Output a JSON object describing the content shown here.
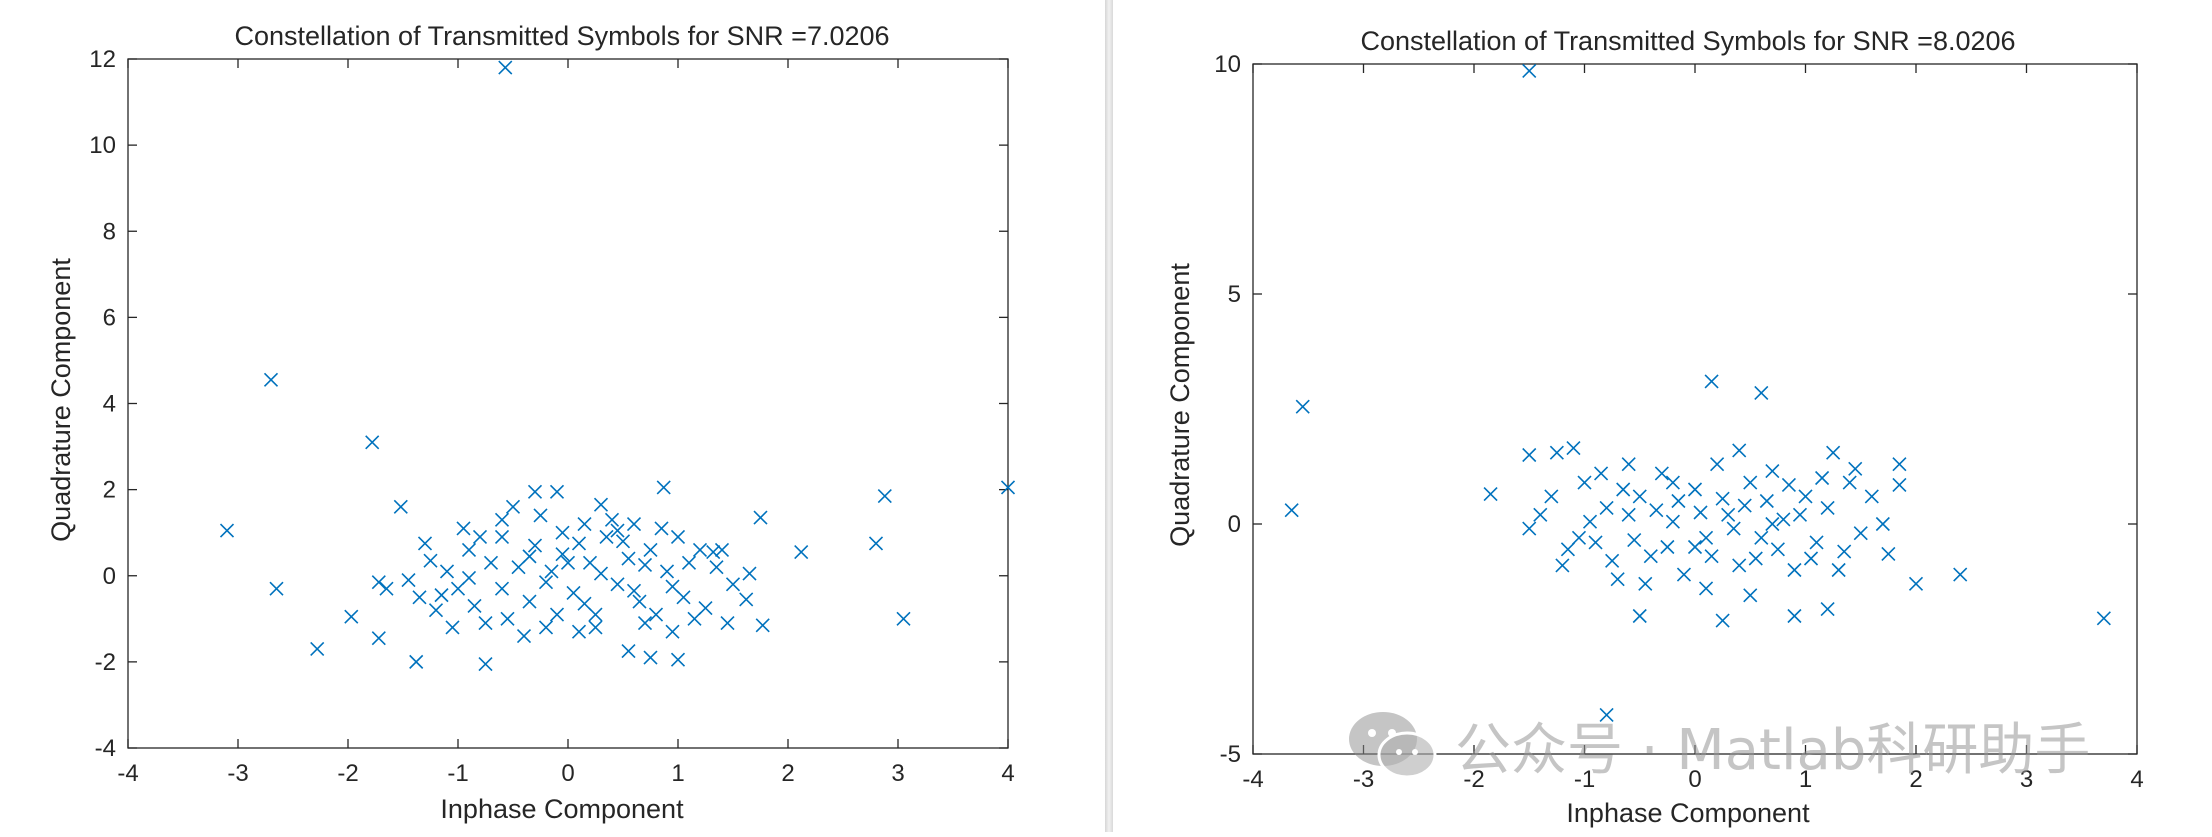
{
  "chart_data": [
    {
      "type": "scatter",
      "title": "Constellation of Transmitted Symbols for SNR =7.0206",
      "xlabel": "Inphase Component",
      "ylabel": "Quadrature Component",
      "xlim": [
        -4,
        4
      ],
      "ylim": [
        -4,
        12
      ],
      "xticks": [
        -4,
        -3,
        -2,
        -1,
        0,
        1,
        2,
        3,
        4
      ],
      "yticks": [
        -4,
        -2,
        0,
        2,
        4,
        6,
        8,
        10,
        12
      ],
      "marker": "x",
      "color": "#0072BD",
      "points": [
        [
          -0.57,
          11.8
        ],
        [
          -2.7,
          4.55
        ],
        [
          -1.78,
          3.1
        ],
        [
          -3.1,
          1.05
        ],
        [
          -2.65,
          -0.3
        ],
        [
          -2.28,
          -1.7
        ],
        [
          -1.97,
          -0.95
        ],
        [
          -1.72,
          -1.45
        ],
        [
          -1.72,
          -0.15
        ],
        [
          -1.65,
          -0.3
        ],
        [
          -1.52,
          1.6
        ],
        [
          -1.38,
          -2.0
        ],
        [
          -1.3,
          0.75
        ],
        [
          -0.75,
          -2.05
        ],
        [
          2.12,
          0.55
        ],
        [
          2.8,
          0.75
        ],
        [
          2.88,
          1.85
        ],
        [
          3.05,
          -1.0
        ],
        [
          4.0,
          2.05
        ],
        [
          0.87,
          2.05
        ],
        [
          1.77,
          -1.15
        ],
        [
          1.75,
          1.35
        ],
        [
          1.65,
          0.05
        ],
        [
          1.62,
          -0.55
        ],
        [
          1.45,
          -1.1
        ],
        [
          1.4,
          0.6
        ],
        [
          1.32,
          0.55
        ],
        [
          1.0,
          -1.95
        ],
        [
          0.75,
          -1.9
        ],
        [
          0.55,
          -1.75
        ],
        [
          -0.3,
          1.95
        ],
        [
          -0.1,
          1.95
        ],
        [
          0.3,
          1.65
        ],
        [
          0.15,
          1.2
        ],
        [
          -0.05,
          0.5
        ],
        [
          -0.2,
          -1.2
        ],
        [
          -0.6,
          1.3
        ],
        [
          -0.8,
          0.9
        ],
        [
          -0.9,
          0.6
        ],
        [
          -1.0,
          -0.3
        ],
        [
          -1.1,
          0.1
        ],
        [
          -1.2,
          -0.8
        ],
        [
          -1.35,
          -0.5
        ],
        [
          -1.45,
          -0.1
        ],
        [
          -0.4,
          -1.4
        ],
        [
          -0.55,
          -1.0
        ],
        [
          -0.6,
          -0.3
        ],
        [
          -0.7,
          0.3
        ],
        [
          -0.3,
          0.7
        ],
        [
          -0.15,
          0.1
        ],
        [
          0.05,
          -0.4
        ],
        [
          0.2,
          0.3
        ],
        [
          0.25,
          -0.9
        ],
        [
          0.35,
          0.9
        ],
        [
          0.45,
          -0.2
        ],
        [
          0.55,
          0.4
        ],
        [
          0.65,
          -0.6
        ],
        [
          0.75,
          0.6
        ],
        [
          0.8,
          -0.9
        ],
        [
          0.9,
          0.1
        ],
        [
          1.0,
          0.9
        ],
        [
          1.05,
          -0.5
        ],
        [
          1.1,
          0.3
        ],
        [
          1.15,
          -1.0
        ],
        [
          1.2,
          0.6
        ],
        [
          0.6,
          1.2
        ],
        [
          0.4,
          1.3
        ],
        [
          0.1,
          -1.3
        ],
        [
          -0.05,
          1.0
        ],
        [
          -0.35,
          -0.6
        ],
        [
          -0.45,
          0.2
        ],
        [
          -0.85,
          -0.7
        ],
        [
          -0.95,
          1.1
        ],
        [
          -1.05,
          -1.2
        ],
        [
          -0.25,
          1.4
        ],
        [
          0.7,
          -1.1
        ],
        [
          0.95,
          -0.25
        ],
        [
          1.25,
          -0.75
        ],
        [
          0.3,
          0.05
        ],
        [
          -0.6,
          0.9
        ],
        [
          -0.2,
          -0.15
        ],
        [
          0.5,
          0.8
        ],
        [
          0.85,
          1.1
        ],
        [
          0.15,
          -0.65
        ],
        [
          -0.75,
          -1.1
        ],
        [
          -1.25,
          0.35
        ],
        [
          -0.9,
          -0.05
        ],
        [
          0.0,
          0.3
        ],
        [
          0.6,
          -0.35
        ],
        [
          1.35,
          0.2
        ],
        [
          -0.5,
          1.6
        ],
        [
          0.25,
          -1.2
        ],
        [
          -0.1,
          -0.9
        ],
        [
          0.95,
          -1.3
        ],
        [
          0.45,
          1.05
        ],
        [
          -1.15,
          -0.45
        ],
        [
          0.7,
          0.25
        ],
        [
          -0.35,
          0.45
        ],
        [
          0.1,
          0.75
        ],
        [
          1.5,
          -0.2
        ]
      ]
    },
    {
      "type": "scatter",
      "title": "Constellation of Transmitted Symbols for SNR =8.0206",
      "xlabel": "Inphase Component",
      "ylabel": "Quadrature Component",
      "xlim": [
        -4,
        4
      ],
      "ylim": [
        -5,
        10
      ],
      "xticks": [
        -4,
        -3,
        -2,
        -1,
        0,
        1,
        2,
        3,
        4
      ],
      "yticks": [
        -5,
        0,
        5,
        10
      ],
      "marker": "x",
      "color": "#0072BD",
      "points": [
        [
          -1.5,
          9.85
        ],
        [
          -3.55,
          2.55
        ],
        [
          -3.65,
          0.3
        ],
        [
          0.15,
          3.1
        ],
        [
          0.6,
          2.85
        ],
        [
          -1.85,
          0.65
        ],
        [
          3.7,
          -2.05
        ],
        [
          2.4,
          -1.1
        ],
        [
          2.0,
          -1.3
        ],
        [
          1.75,
          -0.65
        ],
        [
          1.85,
          0.85
        ],
        [
          1.85,
          1.3
        ],
        [
          1.45,
          1.2
        ],
        [
          1.25,
          1.55
        ],
        [
          1.2,
          -1.85
        ],
        [
          0.9,
          -2.0
        ],
        [
          0.5,
          -1.55
        ],
        [
          0.25,
          -2.1
        ],
        [
          -0.5,
          -2.0
        ],
        [
          -0.8,
          -4.15
        ],
        [
          -1.5,
          1.5
        ],
        [
          -1.25,
          1.55
        ],
        [
          -1.1,
          1.65
        ],
        [
          -1.5,
          -0.1
        ],
        [
          -1.4,
          0.2
        ],
        [
          -1.2,
          -0.9
        ],
        [
          -1.0,
          0.9
        ],
        [
          -0.9,
          -0.4
        ],
        [
          -0.8,
          0.35
        ],
        [
          -0.7,
          -1.2
        ],
        [
          -0.6,
          1.3
        ],
        [
          -0.5,
          0.6
        ],
        [
          -0.4,
          -0.7
        ],
        [
          -0.3,
          1.1
        ],
        [
          -0.2,
          0.05
        ],
        [
          -0.1,
          -1.1
        ],
        [
          0.0,
          0.75
        ],
        [
          0.1,
          -0.3
        ],
        [
          0.2,
          1.3
        ],
        [
          0.3,
          0.2
        ],
        [
          0.4,
          -0.9
        ],
        [
          0.5,
          0.9
        ],
        [
          0.6,
          -0.3
        ],
        [
          0.7,
          1.15
        ],
        [
          0.8,
          0.1
        ],
        [
          0.9,
          -1.0
        ],
        [
          1.0,
          0.6
        ],
        [
          1.1,
          -0.4
        ],
        [
          1.2,
          0.35
        ],
        [
          1.3,
          -1.0
        ],
        [
          1.4,
          0.9
        ],
        [
          1.5,
          -0.2
        ],
        [
          1.6,
          0.6
        ],
        [
          1.7,
          0.0
        ],
        [
          -1.05,
          -0.3
        ],
        [
          -0.95,
          0.05
        ],
        [
          -0.75,
          -0.8
        ],
        [
          -0.65,
          0.75
        ],
        [
          -0.55,
          -0.35
        ],
        [
          -0.35,
          0.3
        ],
        [
          -0.25,
          -0.5
        ],
        [
          -0.15,
          0.5
        ],
        [
          0.05,
          0.25
        ],
        [
          0.15,
          -0.7
        ],
        [
          0.25,
          0.55
        ],
        [
          0.35,
          -0.1
        ],
        [
          0.45,
          0.4
        ],
        [
          0.55,
          -0.75
        ],
        [
          0.65,
          0.5
        ],
        [
          0.75,
          -0.55
        ],
        [
          0.85,
          0.85
        ],
        [
          0.95,
          0.2
        ],
        [
          1.05,
          -0.75
        ],
        [
          1.15,
          1.0
        ],
        [
          -1.3,
          0.6
        ],
        [
          -1.15,
          -0.55
        ],
        [
          -0.85,
          1.1
        ],
        [
          -0.45,
          -1.3
        ],
        [
          0.1,
          -1.4
        ],
        [
          0.4,
          1.6
        ],
        [
          1.35,
          -0.6
        ],
        [
          -0.6,
          0.2
        ],
        [
          0.0,
          -0.5
        ],
        [
          0.7,
          0.0
        ],
        [
          -0.2,
          0.9
        ]
      ]
    }
  ]
}
